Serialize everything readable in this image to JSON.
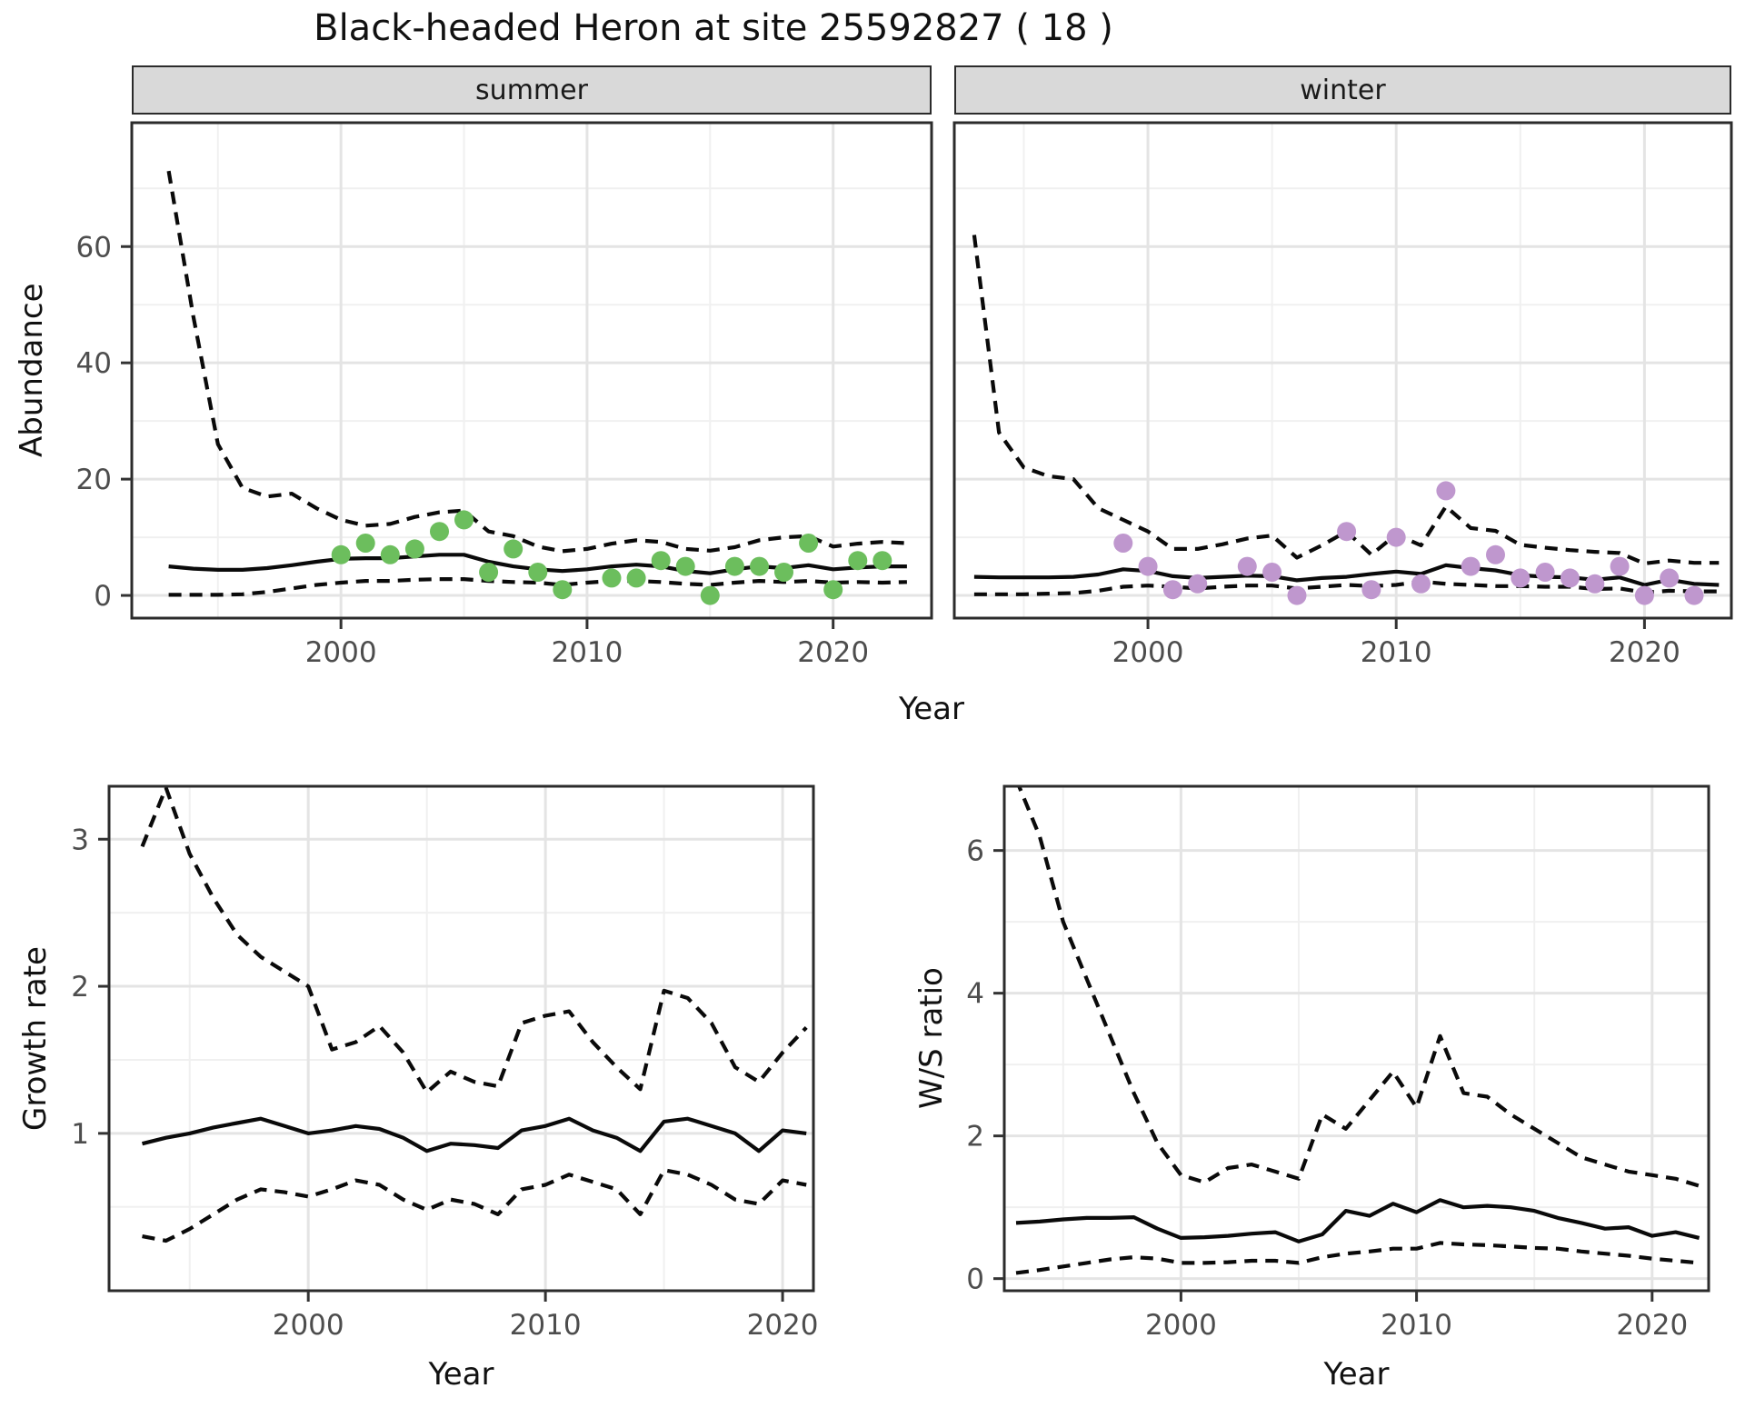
{
  "title": "Black-headed Heron at site 25592827 ( 18 )",
  "axis_titles": {
    "top_y": "Abundance",
    "top_x": "Year",
    "bottom_left_y": "Growth rate",
    "bottom_left_x": "Year",
    "bottom_right_y": "W/S ratio",
    "bottom_right_x": "Year"
  },
  "colors": {
    "summer_point": "#6cbe5d",
    "winter_point": "#bf97ce",
    "line": "#0a0a0a",
    "strip_bg": "#d9d9d9",
    "panel_bg": "#ffffff",
    "panel_border": "#2b2b2b",
    "grid_major": "#e4e4e4",
    "grid_minor": "#f0f0f0",
    "tick_text": "#4d4d4d",
    "tick_mark": "#333333"
  },
  "chart_data": [
    {
      "id": "abundance-summer",
      "type": "line",
      "facet": "summer",
      "ylabel": "Abundance",
      "xlabel": "Year",
      "xlim": [
        1991.5,
        2024.0
      ],
      "ylim": [
        -3.9,
        81.3
      ],
      "xticks": [
        2000,
        2010,
        2020
      ],
      "xticks_minor": [
        1995,
        2005,
        2015
      ],
      "yticks": [
        0,
        20,
        40,
        60
      ],
      "yticks_minor": [
        10,
        30,
        50,
        70
      ],
      "grid": true,
      "x_years": [
        1993,
        1994,
        1995,
        1996,
        1997,
        1998,
        1999,
        2000,
        2001,
        2002,
        2003,
        2004,
        2005,
        2006,
        2007,
        2008,
        2009,
        2010,
        2011,
        2012,
        2013,
        2014,
        2015,
        2016,
        2017,
        2018,
        2019,
        2020,
        2021,
        2022,
        2023
      ],
      "series": [
        {
          "name": "median",
          "style": "solid",
          "values": [
            5.0,
            4.6,
            4.4,
            4.4,
            4.7,
            5.2,
            5.8,
            6.3,
            6.4,
            6.4,
            6.7,
            7.0,
            7.0,
            5.8,
            5.0,
            4.5,
            4.2,
            4.5,
            5.0,
            5.3,
            5.0,
            4.2,
            3.8,
            4.5,
            5.0,
            4.7,
            5.2,
            4.5,
            4.8,
            5.0,
            5.0
          ]
        },
        {
          "name": "lower_ci",
          "style": "dashed",
          "values": [
            0.1,
            0.1,
            0.1,
            0.2,
            0.6,
            1.2,
            1.8,
            2.2,
            2.5,
            2.5,
            2.7,
            2.8,
            2.8,
            2.5,
            2.3,
            2.2,
            1.8,
            2.2,
            2.5,
            2.5,
            2.3,
            2.0,
            1.8,
            2.2,
            2.5,
            2.3,
            2.5,
            2.2,
            2.3,
            2.2,
            2.3
          ]
        },
        {
          "name": "upper_ci",
          "style": "dashed",
          "values": [
            73,
            48,
            26,
            18.5,
            17,
            17.5,
            15,
            13,
            12,
            12.3,
            13.5,
            14.3,
            14.6,
            11,
            10.2,
            8.4,
            7.6,
            8.0,
            8.9,
            9.5,
            9.2,
            8.0,
            7.7,
            8.3,
            9.5,
            10,
            10.2,
            8.4,
            8.9,
            9.2,
            9.0
          ]
        }
      ],
      "points": {
        "name": "observed-counts",
        "color_key": "summer_point",
        "data": [
          [
            2000,
            7
          ],
          [
            2001,
            9
          ],
          [
            2002,
            7
          ],
          [
            2003,
            8
          ],
          [
            2004,
            11
          ],
          [
            2005,
            13
          ],
          [
            2006,
            4
          ],
          [
            2007,
            8
          ],
          [
            2008,
            4
          ],
          [
            2009,
            1
          ],
          [
            2011,
            3
          ],
          [
            2012,
            3
          ],
          [
            2013,
            6
          ],
          [
            2014,
            5
          ],
          [
            2015,
            0
          ],
          [
            2016,
            5
          ],
          [
            2017,
            5
          ],
          [
            2018,
            4
          ],
          [
            2019,
            9
          ],
          [
            2020,
            1
          ],
          [
            2021,
            6
          ],
          [
            2022,
            6
          ]
        ]
      }
    },
    {
      "id": "abundance-winter",
      "type": "line",
      "facet": "winter",
      "ylabel": "Abundance",
      "xlabel": "Year",
      "xlim": [
        1992.2,
        2023.5
      ],
      "ylim": [
        -3.9,
        81.3
      ],
      "xticks": [
        2000,
        2010,
        2020
      ],
      "xticks_minor": [
        1995,
        2005,
        2015
      ],
      "yticks": [
        0,
        20,
        40,
        60
      ],
      "yticks_minor": [
        10,
        30,
        50,
        70
      ],
      "grid": true,
      "x_years": [
        1993,
        1994,
        1995,
        1996,
        1997,
        1998,
        1999,
        2000,
        2001,
        2002,
        2003,
        2004,
        2005,
        2006,
        2007,
        2008,
        2009,
        2010,
        2011,
        2012,
        2013,
        2014,
        2015,
        2016,
        2017,
        2018,
        2019,
        2020,
        2021,
        2022,
        2023
      ],
      "series": [
        {
          "name": "median",
          "style": "solid",
          "values": [
            3.2,
            3.1,
            3.1,
            3.1,
            3.2,
            3.6,
            4.5,
            4.2,
            3.3,
            3.0,
            3.2,
            3.4,
            3.3,
            2.6,
            3.0,
            3.2,
            3.7,
            4.1,
            3.7,
            5.2,
            4.7,
            4.3,
            3.5,
            3.2,
            3.1,
            2.7,
            3.1,
            1.8,
            2.7,
            2.0,
            1.8
          ]
        },
        {
          "name": "lower_ci",
          "style": "dashed",
          "values": [
            0.2,
            0.2,
            0.2,
            0.3,
            0.4,
            0.8,
            1.5,
            1.7,
            1.5,
            1.2,
            1.5,
            1.7,
            1.7,
            1.2,
            1.5,
            1.8,
            1.6,
            1.8,
            2.4,
            2.0,
            1.8,
            1.6,
            1.6,
            1.5,
            1.5,
            1.1,
            1.2,
            0.5,
            0.8,
            0.7,
            0.7
          ]
        },
        {
          "name": "upper_ci",
          "style": "dashed",
          "values": [
            62,
            28,
            22,
            20.5,
            20,
            15,
            13,
            11,
            8,
            8,
            8.8,
            9.8,
            10.3,
            6.5,
            8.6,
            11,
            7.0,
            10.5,
            8.6,
            15.3,
            11.6,
            11.1,
            8.7,
            8.2,
            7.8,
            7.5,
            7.3,
            5.5,
            6.0,
            5.6,
            5.6
          ]
        }
      ],
      "points": {
        "name": "observed-counts",
        "color_key": "winter_point",
        "data": [
          [
            1999,
            9
          ],
          [
            2000,
            5
          ],
          [
            2001,
            1
          ],
          [
            2002,
            2
          ],
          [
            2004,
            5
          ],
          [
            2005,
            4
          ],
          [
            2006,
            0
          ],
          [
            2008,
            11
          ],
          [
            2009,
            1
          ],
          [
            2010,
            10
          ],
          [
            2011,
            2
          ],
          [
            2012,
            18
          ],
          [
            2013,
            5
          ],
          [
            2014,
            7
          ],
          [
            2015,
            3
          ],
          [
            2016,
            4
          ],
          [
            2017,
            3
          ],
          [
            2018,
            2
          ],
          [
            2019,
            5
          ],
          [
            2020,
            0
          ],
          [
            2021,
            3
          ],
          [
            2022,
            0
          ]
        ]
      }
    },
    {
      "id": "growth-rate",
      "type": "line",
      "facet": null,
      "ylabel": "Growth rate",
      "xlabel": "Year",
      "xlim": [
        1991.6,
        2021.3
      ],
      "ylim": [
        -0.07,
        3.36
      ],
      "xticks": [
        2000,
        2010,
        2020
      ],
      "xticks_minor": [
        1995,
        2005,
        2015
      ],
      "yticks": [
        1,
        2,
        3
      ],
      "yticks_minor": [
        0.5,
        1.5,
        2.5
      ],
      "grid": true,
      "x_years": [
        1993,
        1994,
        1995,
        1996,
        1997,
        1998,
        1999,
        2000,
        2001,
        2002,
        2003,
        2004,
        2005,
        2006,
        2007,
        2008,
        2009,
        2010,
        2011,
        2012,
        2013,
        2014,
        2015,
        2016,
        2017,
        2018,
        2019,
        2020,
        2021
      ],
      "series": [
        {
          "name": "median",
          "style": "solid",
          "values": [
            0.93,
            0.97,
            1.0,
            1.04,
            1.07,
            1.1,
            1.05,
            1.0,
            1.02,
            1.05,
            1.03,
            0.97,
            0.88,
            0.93,
            0.92,
            0.9,
            1.02,
            1.05,
            1.1,
            1.02,
            0.97,
            0.88,
            1.08,
            1.1,
            1.05,
            1.0,
            0.88,
            1.02,
            1.0
          ]
        },
        {
          "name": "lower_ci",
          "style": "dashed",
          "values": [
            0.3,
            0.27,
            0.35,
            0.45,
            0.55,
            0.62,
            0.6,
            0.57,
            0.62,
            0.68,
            0.65,
            0.55,
            0.48,
            0.55,
            0.52,
            0.45,
            0.62,
            0.65,
            0.72,
            0.67,
            0.62,
            0.45,
            0.75,
            0.72,
            0.65,
            0.55,
            0.52,
            0.68,
            0.65
          ]
        },
        {
          "name": "upper_ci",
          "style": "dashed",
          "values": [
            2.95,
            3.35,
            2.9,
            2.6,
            2.35,
            2.2,
            2.1,
            2.0,
            1.57,
            1.62,
            1.73,
            1.55,
            1.28,
            1.42,
            1.35,
            1.32,
            1.75,
            1.8,
            1.83,
            1.62,
            1.45,
            1.3,
            1.97,
            1.92,
            1.75,
            1.45,
            1.35,
            1.55,
            1.72
          ]
        }
      ],
      "points": null
    },
    {
      "id": "ws-ratio",
      "type": "line",
      "facet": null,
      "ylabel": "W/S ratio",
      "xlabel": "Year",
      "xlim": [
        1992.5,
        2022.4
      ],
      "ylim": [
        -0.17,
        6.9
      ],
      "xticks": [
        2000,
        2010,
        2020
      ],
      "xticks_minor": [
        1995,
        2005,
        2015
      ],
      "yticks": [
        0,
        2,
        4,
        6
      ],
      "yticks_minor": [
        1,
        3,
        5
      ],
      "grid": true,
      "x_years": [
        1993,
        1994,
        1995,
        1996,
        1997,
        1998,
        1999,
        2000,
        2001,
        2002,
        2003,
        2004,
        2005,
        2006,
        2007,
        2008,
        2009,
        2010,
        2011,
        2012,
        2013,
        2014,
        2015,
        2016,
        2017,
        2018,
        2019,
        2020,
        2021,
        2022
      ],
      "series": [
        {
          "name": "median",
          "style": "solid",
          "values": [
            0.78,
            0.8,
            0.83,
            0.85,
            0.85,
            0.86,
            0.7,
            0.57,
            0.58,
            0.6,
            0.63,
            0.65,
            0.52,
            0.62,
            0.95,
            0.88,
            1.05,
            0.93,
            1.1,
            1.0,
            1.02,
            1.0,
            0.95,
            0.85,
            0.78,
            0.7,
            0.72,
            0.6,
            0.65,
            0.57
          ]
        },
        {
          "name": "lower_ci",
          "style": "dashed",
          "values": [
            0.08,
            0.12,
            0.17,
            0.22,
            0.27,
            0.3,
            0.28,
            0.22,
            0.22,
            0.23,
            0.25,
            0.25,
            0.22,
            0.3,
            0.35,
            0.38,
            0.42,
            0.42,
            0.5,
            0.48,
            0.47,
            0.45,
            0.43,
            0.42,
            0.38,
            0.35,
            0.32,
            0.28,
            0.25,
            0.22
          ]
        },
        {
          "name": "upper_ci",
          "style": "dashed",
          "values": [
            7.0,
            6.2,
            5.0,
            4.2,
            3.4,
            2.6,
            1.9,
            1.45,
            1.35,
            1.55,
            1.6,
            1.5,
            1.4,
            2.3,
            2.1,
            2.5,
            2.9,
            2.4,
            3.4,
            2.6,
            2.55,
            2.3,
            2.1,
            1.9,
            1.7,
            1.6,
            1.5,
            1.45,
            1.4,
            1.3
          ]
        }
      ],
      "points": null
    }
  ]
}
